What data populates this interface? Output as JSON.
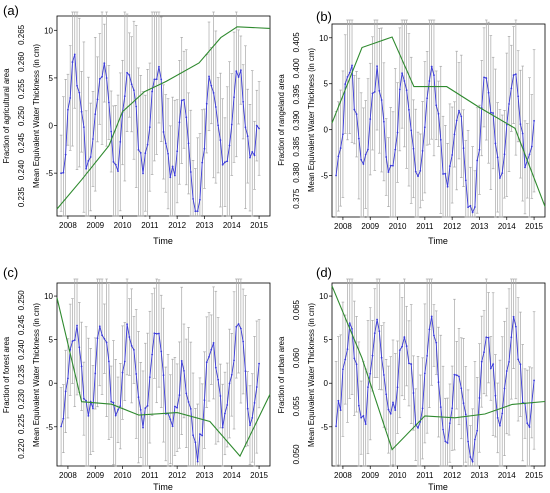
{
  "colors": {
    "water": "#3a3ad8",
    "error": "#a8a8a8",
    "land": "#2f8a2f",
    "axis": "#000000"
  },
  "chart_data": [
    {
      "panel_label": "(a)",
      "type": "line",
      "xlabel": "Time",
      "ylabel_water": "Mean Equivalent Water Thickness (in cm)",
      "ylabel_land": "Fraction of agricultural area",
      "x_ticks": [
        "2008",
        "2009",
        "2010",
        "2011",
        "2012",
        "2013",
        "2014",
        "2015"
      ],
      "y_ticks_water": [
        "10",
        "5",
        "0",
        "-5"
      ],
      "y_ticks_land": [
        "0.235",
        "0.240",
        "0.245",
        "0.250",
        "0.255",
        "0.260",
        "0.265"
      ],
      "xlim": [
        2007.6,
        2015.4
      ],
      "ylim_water": [
        -9.5,
        11.5
      ],
      "ylim_land": [
        0.2315,
        0.2685
      ],
      "land_series": {
        "x": [
          2007.6,
          2008.5,
          2009.5,
          2010.0,
          2010.8,
          2011.6,
          2012.8,
          2013.6,
          2014.2,
          2015.4
        ],
        "y": [
          0.2328,
          0.2382,
          0.2445,
          0.2508,
          0.2545,
          0.2564,
          0.2598,
          0.2645,
          0.2665,
          0.2662
        ]
      }
    },
    {
      "panel_label": "(b)",
      "type": "line",
      "xlabel": "Time",
      "ylabel_water": "Mean Equivalent Water Thickness (in cm)",
      "ylabel_land": "Fraction of rangeland area",
      "x_ticks": [
        "2008",
        "2009",
        "2010",
        "2011",
        "2012",
        "2013",
        "2014",
        "2015"
      ],
      "y_ticks_water": [
        "10",
        "5",
        "0",
        "-5"
      ],
      "y_ticks_land": [
        "0.375",
        "0.380",
        "0.385",
        "0.390",
        "0.395",
        "0.400",
        "0.405"
      ],
      "xlim": [
        2007.6,
        2015.4
      ],
      "ylim_water": [
        -9.5,
        11.5
      ],
      "ylim_land": [
        0.3715,
        0.4085
      ],
      "land_series": {
        "x": [
          2007.6,
          2008.7,
          2009.8,
          2010.6,
          2011.8,
          2013.0,
          2014.3,
          2015.4
        ],
        "y": [
          0.3895,
          0.404,
          0.406,
          0.3965,
          0.3965,
          0.3925,
          0.3885,
          0.3735
        ]
      }
    },
    {
      "panel_label": "(c)",
      "type": "line",
      "xlabel": "Time",
      "ylabel_water": "Mean Equivalent Water Thickness (in cm)",
      "ylabel_land": "Fraction of forest area",
      "x_ticks": [
        "2008",
        "2009",
        "2010",
        "2011",
        "2012",
        "2013",
        "2014",
        "2015"
      ],
      "y_ticks_water": [
        "10",
        "5",
        "0",
        "-5"
      ],
      "y_ticks_land": [
        "0.220",
        "0.225",
        "0.230",
        "0.235",
        "0.240",
        "0.245",
        "0.250"
      ],
      "xlim": [
        2007.6,
        2015.4
      ],
      "ylim_water": [
        -9.5,
        11.5
      ],
      "ylim_land": [
        0.2165,
        0.2535
      ],
      "land_series": {
        "x": [
          2007.6,
          2008.5,
          2009.6,
          2010.6,
          2012.0,
          2013.2,
          2014.3,
          2015.4
        ],
        "y": [
          0.2505,
          0.2295,
          0.229,
          0.2268,
          0.2273,
          0.2255,
          0.2185,
          0.231
        ]
      }
    },
    {
      "panel_label": "(d)",
      "type": "line",
      "xlabel": "Time",
      "ylabel_water": "Mean Equivalent Water Thickness (in cm)",
      "ylabel_land": "Fraction of urban area",
      "x_ticks": [
        "2008",
        "2009",
        "2010",
        "2011",
        "2012",
        "2013",
        "2014",
        "2015"
      ],
      "y_ticks_water": [
        "10",
        "5",
        "0",
        "-5"
      ],
      "y_ticks_land": [
        "0.050",
        "0.055",
        "0.060",
        "0.065"
      ],
      "xlim": [
        2007.6,
        2015.4
      ],
      "ylim_water": [
        -9.5,
        11.5
      ],
      "ylim_land": [
        0.0488,
        0.0678
      ],
      "land_series": {
        "x": [
          2007.6,
          2008.7,
          2009.8,
          2011.0,
          2012.1,
          2013.2,
          2014.2,
          2015.4
        ],
        "y": [
          0.0675,
          0.06,
          0.0505,
          0.054,
          0.0538,
          0.0542,
          0.0552,
          0.0555
        ]
      }
    }
  ]
}
